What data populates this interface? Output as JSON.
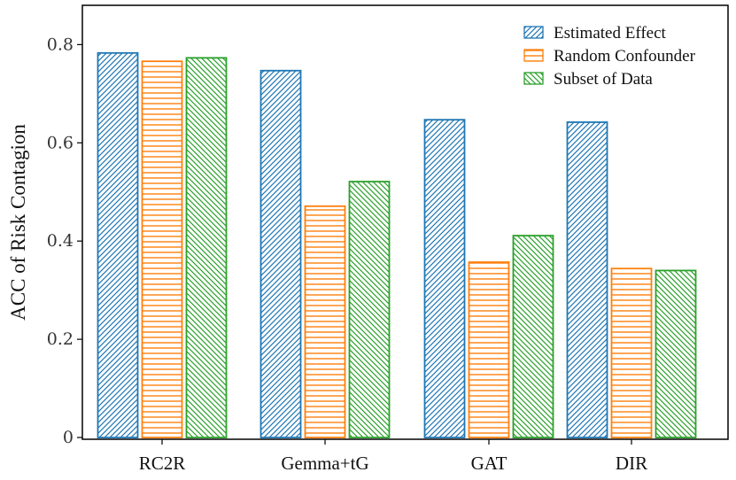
{
  "chart_data": {
    "type": "bar",
    "title": "",
    "xlabel": "",
    "ylabel": "ACC of Risk Contagion",
    "ylim": [
      0,
      0.88
    ],
    "yticks": [
      0,
      0.2,
      0.4,
      0.6,
      0.8
    ],
    "ytick_labels": [
      "0",
      "0.2",
      "0.4",
      "0.6",
      "0.8"
    ],
    "categories": [
      "RC2R",
      "Gemma+tG",
      "GAT",
      "DIR"
    ],
    "series": [
      {
        "name": "Estimated Effect",
        "values": [
          0.783,
          0.747,
          0.647,
          0.642
        ],
        "color": "#1f77b4",
        "pattern": "diagonal-forward"
      },
      {
        "name": "Random Confounder",
        "values": [
          0.766,
          0.471,
          0.357,
          0.344
        ],
        "color": "#ff7f0e",
        "pattern": "horizontal"
      },
      {
        "name": "Subset of Data",
        "values": [
          0.773,
          0.521,
          0.411,
          0.34
        ],
        "color": "#2ca02c",
        "pattern": "diagonal-backward"
      }
    ],
    "grid": false,
    "legend_position": "top-right"
  }
}
